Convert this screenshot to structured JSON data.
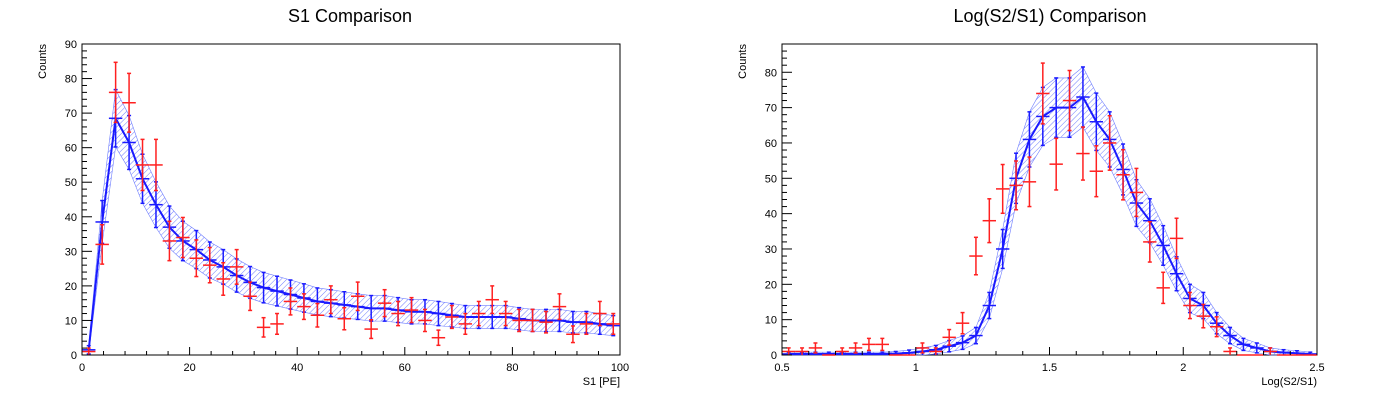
{
  "colors": {
    "mc": "#1a1aff",
    "data": "#ff2020",
    "band": "#6e7dff",
    "axis": "#000000"
  },
  "chart_data": [
    {
      "type": "line",
      "title": "S1 Comparison",
      "xlabel": "S1 [PE]",
      "ylabel": "Counts",
      "xlim": [
        0,
        100
      ],
      "ylim": [
        0,
        90
      ],
      "xticks": [
        0,
        20,
        40,
        60,
        80,
        100
      ],
      "yticks": [
        0,
        10,
        20,
        30,
        40,
        50,
        60,
        70,
        80,
        90
      ],
      "grid": false,
      "bin_width": 2.5,
      "series": [
        {
          "role": "mc",
          "style": "line with error bars and hatched uncertainty band",
          "x": [
            1.25,
            3.75,
            6.25,
            8.75,
            11.25,
            13.75,
            16.25,
            18.75,
            21.25,
            23.75,
            26.25,
            28.75,
            31.25,
            33.75,
            36.25,
            38.75,
            41.25,
            43.75,
            46.25,
            48.75,
            51.25,
            53.75,
            56.25,
            58.75,
            61.25,
            63.75,
            66.25,
            68.75,
            71.25,
            73.75,
            76.25,
            78.75,
            81.25,
            83.75,
            86.25,
            88.75,
            91.25,
            93.75,
            96.25,
            98.75
          ],
          "values": [
            1.5,
            38.5,
            68.5,
            61.5,
            51,
            43.5,
            37,
            33,
            30.5,
            27.5,
            25.5,
            23,
            21,
            19.5,
            18.5,
            17.5,
            16.5,
            15.5,
            15,
            14.5,
            14,
            13.5,
            13.5,
            13,
            12.5,
            12.5,
            12,
            11.5,
            11,
            11,
            11,
            11,
            10.5,
            10,
            10,
            10,
            9.5,
            9.5,
            9,
            8.5
          ],
          "errors": [
            1.2,
            6.2,
            8.3,
            7.8,
            7.1,
            6.6,
            6.1,
            5.7,
            5.5,
            5.2,
            5,
            4.8,
            4.6,
            4.4,
            4.3,
            4.2,
            4.1,
            3.9,
            3.9,
            3.8,
            3.7,
            3.7,
            3.7,
            3.6,
            3.5,
            3.5,
            3.5,
            3.4,
            3.3,
            3.3,
            3.3,
            3.3,
            3.2,
            3.2,
            3.2,
            3.2,
            3.1,
            3.1,
            3,
            2.9
          ]
        },
        {
          "role": "data",
          "style": "points with error bars",
          "x": [
            1.25,
            3.75,
            6.25,
            8.75,
            11.25,
            13.75,
            16.25,
            18.75,
            21.25,
            23.75,
            26.25,
            28.75,
            31.25,
            33.75,
            36.25,
            38.75,
            41.25,
            43.75,
            46.25,
            48.75,
            51.25,
            53.75,
            56.25,
            58.75,
            61.25,
            63.75,
            66.25,
            68.75,
            71.25,
            73.75,
            76.25,
            78.75,
            81.25,
            83.75,
            86.25,
            88.75,
            91.25,
            93.75,
            96.25,
            98.75
          ],
          "values": [
            1,
            32,
            76,
            73,
            55,
            55,
            33,
            34,
            28,
            26,
            22,
            25.5,
            17,
            8,
            9,
            15.5,
            14,
            11.5,
            16,
            10.5,
            17,
            7.5,
            15,
            12,
            13,
            10,
            5,
            11,
            9,
            12,
            16,
            12,
            10,
            10,
            9.5,
            14,
            6,
            9,
            12,
            9
          ],
          "errors": [
            1,
            5.7,
            8.7,
            8.5,
            7.4,
            7.4,
            5.7,
            5.8,
            5.3,
            5.1,
            4.7,
            5,
            4.1,
            2.8,
            3,
            3.9,
            3.7,
            3.4,
            4,
            3.2,
            4.1,
            2.7,
            3.9,
            3.5,
            3.6,
            3.2,
            2.2,
            3.3,
            3,
            3.5,
            4,
            3.5,
            3.2,
            3.2,
            3.1,
            3.7,
            2.4,
            3,
            3.5,
            3
          ]
        }
      ]
    },
    {
      "type": "line",
      "title": "Log(S2/S1) Comparison",
      "xlabel": "Log(S2/S1)",
      "ylabel": "Counts",
      "xlim": [
        0.5,
        2.5
      ],
      "ylim": [
        0,
        88
      ],
      "xticks": [
        0.5,
        1,
        1.5,
        2,
        2.5
      ],
      "yticks": [
        0,
        10,
        20,
        30,
        40,
        50,
        60,
        70,
        80
      ],
      "grid": false,
      "bin_width": 0.05,
      "series": [
        {
          "role": "mc",
          "style": "line with error bars and hatched uncertainty band",
          "x": [
            0.525,
            0.575,
            0.625,
            0.675,
            0.725,
            0.775,
            0.825,
            0.875,
            0.925,
            0.975,
            1.025,
            1.075,
            1.125,
            1.175,
            1.225,
            1.275,
            1.325,
            1.375,
            1.425,
            1.475,
            1.525,
            1.575,
            1.625,
            1.675,
            1.725,
            1.775,
            1.825,
            1.875,
            1.925,
            1.975,
            2.025,
            2.075,
            2.125,
            2.175,
            2.225,
            2.275,
            2.325,
            2.375,
            2.425,
            2.475
          ],
          "values": [
            0.3,
            0.3,
            0.3,
            0.3,
            0.3,
            0.3,
            0.3,
            0.3,
            0.4,
            0.6,
            1,
            1.5,
            2.5,
            3.5,
            5.5,
            14,
            30,
            50,
            61,
            67.5,
            70,
            70,
            73,
            66,
            61,
            52.5,
            43,
            38,
            31,
            23,
            16,
            14,
            9,
            5.5,
            3,
            2,
            1,
            0.7,
            0.5,
            0.3
          ],
          "errors": [
            0.5,
            0.5,
            0.5,
            0.5,
            0.5,
            0.5,
            0.5,
            0.5,
            0.6,
            0.8,
            1,
            1.2,
            1.6,
            1.9,
            2.3,
            3.7,
            5.5,
            7.1,
            7.8,
            8.2,
            8.4,
            8.4,
            8.5,
            8.1,
            7.8,
            7.2,
            6.6,
            6.2,
            5.6,
            4.8,
            4,
            3.7,
            3,
            2.3,
            1.7,
            1.4,
            1,
            0.8,
            0.7,
            0.5
          ]
        },
        {
          "role": "data",
          "style": "points with error bars",
          "x": [
            0.525,
            0.575,
            0.625,
            0.675,
            0.725,
            0.775,
            0.825,
            0.875,
            0.925,
            0.975,
            1.025,
            1.075,
            1.125,
            1.175,
            1.225,
            1.275,
            1.325,
            1.375,
            1.425,
            1.475,
            1.525,
            1.575,
            1.625,
            1.675,
            1.725,
            1.775,
            1.825,
            1.875,
            1.925,
            1.975,
            2.025,
            2.075,
            2.125,
            2.175,
            2.225,
            2.275,
            2.325,
            2.375,
            2.425,
            2.475
          ],
          "values": [
            1,
            1,
            2,
            0,
            1,
            2,
            3,
            3,
            0,
            0,
            2,
            1,
            5,
            9,
            28,
            38,
            47,
            48,
            49,
            74,
            54,
            72,
            57,
            52,
            60,
            51,
            46,
            32,
            19,
            33,
            14,
            11,
            8,
            1,
            0,
            0,
            1,
            0,
            0,
            0
          ],
          "errors": [
            1,
            1,
            1.4,
            0,
            1,
            1.4,
            1.7,
            1.7,
            0,
            0,
            1.4,
            1,
            2.2,
            3,
            5.3,
            6.2,
            6.9,
            6.9,
            7,
            8.6,
            7.3,
            8.5,
            7.5,
            7.2,
            7.7,
            7.1,
            6.8,
            5.7,
            4.4,
            5.7,
            3.7,
            3.3,
            2.8,
            1,
            0,
            0,
            1,
            0,
            0,
            0
          ]
        }
      ]
    }
  ]
}
